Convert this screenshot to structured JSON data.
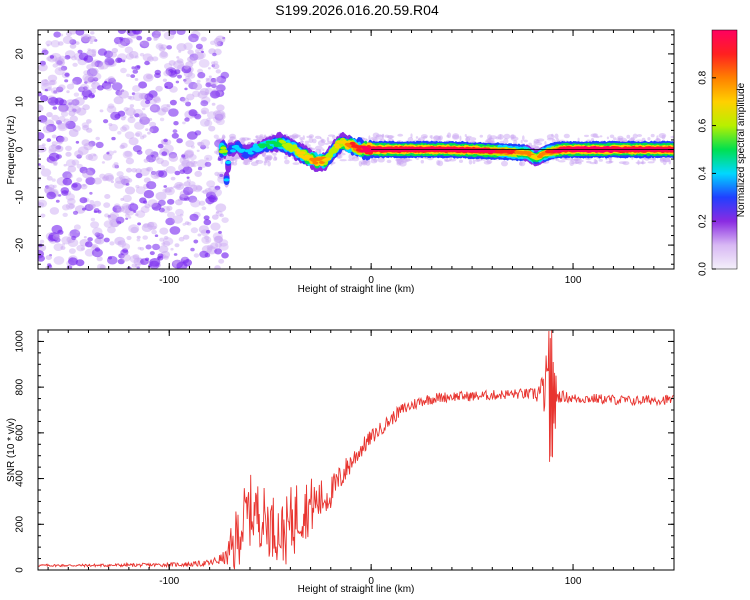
{
  "title": "S199.2026.016.20.59.R04",
  "colors": {
    "snr_line": "#e8342f",
    "scatter_purple": "#7a2af0",
    "ridge_red": "#e8202a",
    "axis": "#000000"
  },
  "chart_data": [
    {
      "type": "heatmap",
      "title": "",
      "xlabel": "Height of straight line (km)",
      "ylabel": "Frequency (Hz)",
      "xlim": [
        -165,
        150
      ],
      "ylim": [
        -25,
        25
      ],
      "xticks": [
        -100,
        0,
        100
      ],
      "yticks": [
        -20,
        -10,
        0,
        10,
        20
      ],
      "colorbar": {
        "label": "Normalized spectral amplitude",
        "range": [
          0.0,
          1.0
        ],
        "ticks": [
          0.0,
          0.2,
          0.4,
          0.6,
          0.8
        ],
        "colors": [
          "#f4f0fa",
          "#d8b8f4",
          "#8a2be2",
          "#2040ff",
          "#00d8ff",
          "#00e050",
          "#b8f000",
          "#ffd000",
          "#ff8000",
          "#ff2020",
          "#ff0060"
        ]
      },
      "ridge": {
        "x": [
          -72,
          -70,
          -66,
          -62,
          -58,
          -55,
          -50,
          -46,
          -42,
          -38,
          -34,
          -30,
          -27,
          -24,
          -22,
          -20,
          -18,
          -16,
          -14,
          -12,
          -9,
          -6,
          -3,
          0,
          20,
          40,
          60,
          70,
          78,
          80,
          82,
          85,
          88,
          95,
          100,
          120,
          140,
          150
        ],
        "y": [
          -8,
          0,
          0.5,
          -1,
          0,
          0.5,
          1,
          1.5,
          1,
          0,
          -1,
          -2,
          -2.5,
          -2.5,
          -2,
          -1,
          0,
          1,
          1.5,
          1.2,
          0.8,
          0.3,
          0,
          0,
          0,
          0,
          -0.3,
          -0.5,
          -0.8,
          -1.5,
          -1.8,
          -1,
          -0.5,
          0,
          0,
          0,
          0,
          0
        ],
        "amp": [
          0.35,
          0.3,
          0.32,
          0.3,
          0.35,
          0.4,
          0.4,
          0.45,
          0.55,
          0.55,
          0.6,
          0.65,
          0.7,
          0.7,
          0.6,
          0.55,
          0.55,
          0.6,
          0.6,
          0.65,
          0.75,
          0.8,
          0.85,
          0.9,
          0.95,
          0.9,
          0.85,
          0.75,
          0.7,
          0.65,
          0.6,
          0.7,
          0.75,
          0.9,
          0.95,
          0.95,
          0.9,
          0.9
        ]
      },
      "noise_region": {
        "x": [
          -165,
          -80
        ],
        "y": [
          -25,
          25
        ]
      }
    },
    {
      "type": "line",
      "title": "",
      "xlabel": "Height of straight line (km)",
      "ylabel": "SNR (10 * v/v)",
      "xlim": [
        -165,
        150
      ],
      "ylim": [
        0,
        1050
      ],
      "xticks": [
        -100,
        0,
        100
      ],
      "yticks": [
        0,
        200,
        400,
        600,
        800,
        1000
      ],
      "series": [
        {
          "name": "SNR",
          "x": [
            -165,
            -140,
            -110,
            -90,
            -80,
            -72,
            -68,
            -65,
            -60,
            -56,
            -52,
            -48,
            -45,
            -42,
            -38,
            -35,
            -30,
            -26,
            -22,
            -18,
            -14,
            -10,
            -5,
            0,
            5,
            10,
            15,
            20,
            25,
            30,
            40,
            50,
            60,
            70,
            80,
            85,
            88,
            90,
            92,
            95,
            100,
            110,
            120,
            130,
            140,
            150
          ],
          "y": [
            20,
            20,
            22,
            25,
            30,
            55,
            100,
            180,
            260,
            250,
            210,
            190,
            160,
            170,
            230,
            260,
            280,
            300,
            320,
            360,
            420,
            470,
            530,
            580,
            620,
            660,
            700,
            720,
            740,
            750,
            760,
            760,
            765,
            770,
            770,
            780,
            800,
            760,
            760,
            760,
            750,
            750,
            745,
            740,
            745,
            745
          ],
          "noise": [
            5,
            6,
            8,
            10,
            15,
            30,
            140,
            150,
            160,
            140,
            150,
            140,
            130,
            150,
            170,
            140,
            130,
            100,
            80,
            70,
            60,
            50,
            40,
            35,
            30,
            30,
            28,
            28,
            25,
            25,
            22,
            22,
            22,
            22,
            25,
            80,
            220,
            200,
            30,
            25,
            22,
            22,
            22,
            22,
            22,
            22
          ]
        }
      ]
    }
  ]
}
